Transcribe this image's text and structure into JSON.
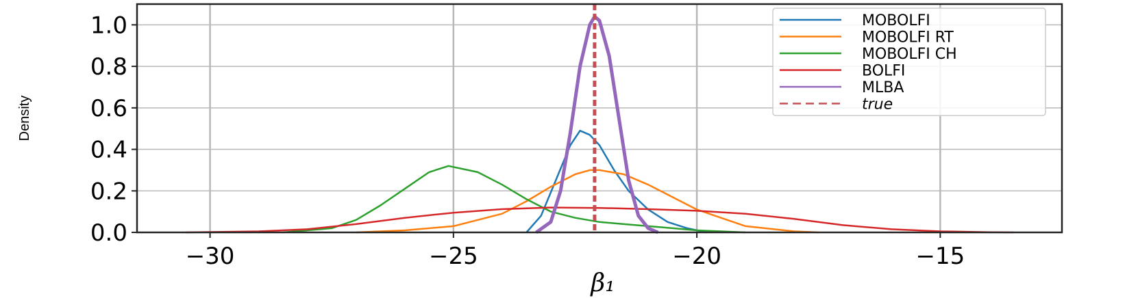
{
  "chart_data": {
    "type": "line",
    "xlabel": "β₁",
    "ylabel": "Density",
    "xlim": [
      -31.5,
      -12.5
    ],
    "ylim": [
      0,
      1.1
    ],
    "xticks": [
      -30,
      -25,
      -20,
      -15
    ],
    "xtick_labels": [
      "−30",
      "−25",
      "−20",
      "−15"
    ],
    "yticks": [
      0.0,
      0.2,
      0.4,
      0.6,
      0.8,
      1.0
    ],
    "ytick_labels": [
      "0.0",
      "0.2",
      "0.4",
      "0.6",
      "0.8",
      "1.0"
    ],
    "grid": true,
    "legend_position": "top-right",
    "series": [
      {
        "name": "MOBOLFI",
        "color": "#1f77b4",
        "x": [
          -23.5,
          -23.2,
          -22.9,
          -22.6,
          -22.4,
          -22.2,
          -22.0,
          -21.7,
          -21.4,
          -21.0,
          -20.6,
          -20.2,
          -19.8
        ],
        "y": [
          0.0,
          0.08,
          0.25,
          0.42,
          0.49,
          0.47,
          0.42,
          0.3,
          0.2,
          0.11,
          0.05,
          0.02,
          0.0
        ]
      },
      {
        "name": "MOBOLFI RT",
        "color": "#ff7f0e",
        "x": [
          -27.0,
          -26.0,
          -25.0,
          -24.0,
          -23.5,
          -23.0,
          -22.5,
          -22.2,
          -22.0,
          -21.5,
          -21.0,
          -20.5,
          -20.0,
          -19.0,
          -18.0,
          -17.5
        ],
        "y": [
          0.0,
          0.01,
          0.03,
          0.09,
          0.15,
          0.22,
          0.28,
          0.3,
          0.3,
          0.28,
          0.23,
          0.17,
          0.11,
          0.03,
          0.005,
          0.0
        ]
      },
      {
        "name": "MOBOLFI CH",
        "color": "#2ca02c",
        "x": [
          -28.5,
          -27.5,
          -27.0,
          -26.5,
          -26.0,
          -25.5,
          -25.1,
          -24.5,
          -24.0,
          -23.5,
          -23.0,
          -22.5,
          -22.0,
          -21.5,
          -21.0,
          -20.5,
          -20.0,
          -19.5,
          -19.0
        ],
        "y": [
          0.0,
          0.02,
          0.06,
          0.13,
          0.21,
          0.29,
          0.32,
          0.29,
          0.23,
          0.16,
          0.1,
          0.07,
          0.05,
          0.04,
          0.03,
          0.02,
          0.01,
          0.005,
          0.0
        ]
      },
      {
        "name": "BOLFI",
        "color": "#d62728",
        "x": [
          -30.5,
          -29.0,
          -28.0,
          -27.0,
          -26.0,
          -25.0,
          -24.0,
          -23.0,
          -22.0,
          -21.0,
          -20.0,
          -19.0,
          -18.0,
          -17.0,
          -16.0,
          -15.0,
          -14.0,
          -13.5
        ],
        "y": [
          0.0,
          0.005,
          0.015,
          0.04,
          0.07,
          0.095,
          0.112,
          0.12,
          0.118,
          0.112,
          0.104,
          0.09,
          0.065,
          0.035,
          0.015,
          0.005,
          0.001,
          0.0
        ]
      },
      {
        "name": "MLBA",
        "color": "#9467bd",
        "x": [
          -23.3,
          -23.0,
          -22.8,
          -22.6,
          -22.4,
          -22.2,
          -22.1,
          -22.0,
          -21.8,
          -21.6,
          -21.4,
          -21.2,
          -21.0,
          -20.8
        ],
        "y": [
          0.0,
          0.05,
          0.2,
          0.48,
          0.8,
          1.0,
          1.04,
          1.02,
          0.85,
          0.55,
          0.25,
          0.08,
          0.02,
          0.0
        ]
      }
    ],
    "reference_lines": [
      {
        "name": "true",
        "x": -22.1,
        "color": "#c44e52",
        "style": "dashed"
      }
    ]
  }
}
